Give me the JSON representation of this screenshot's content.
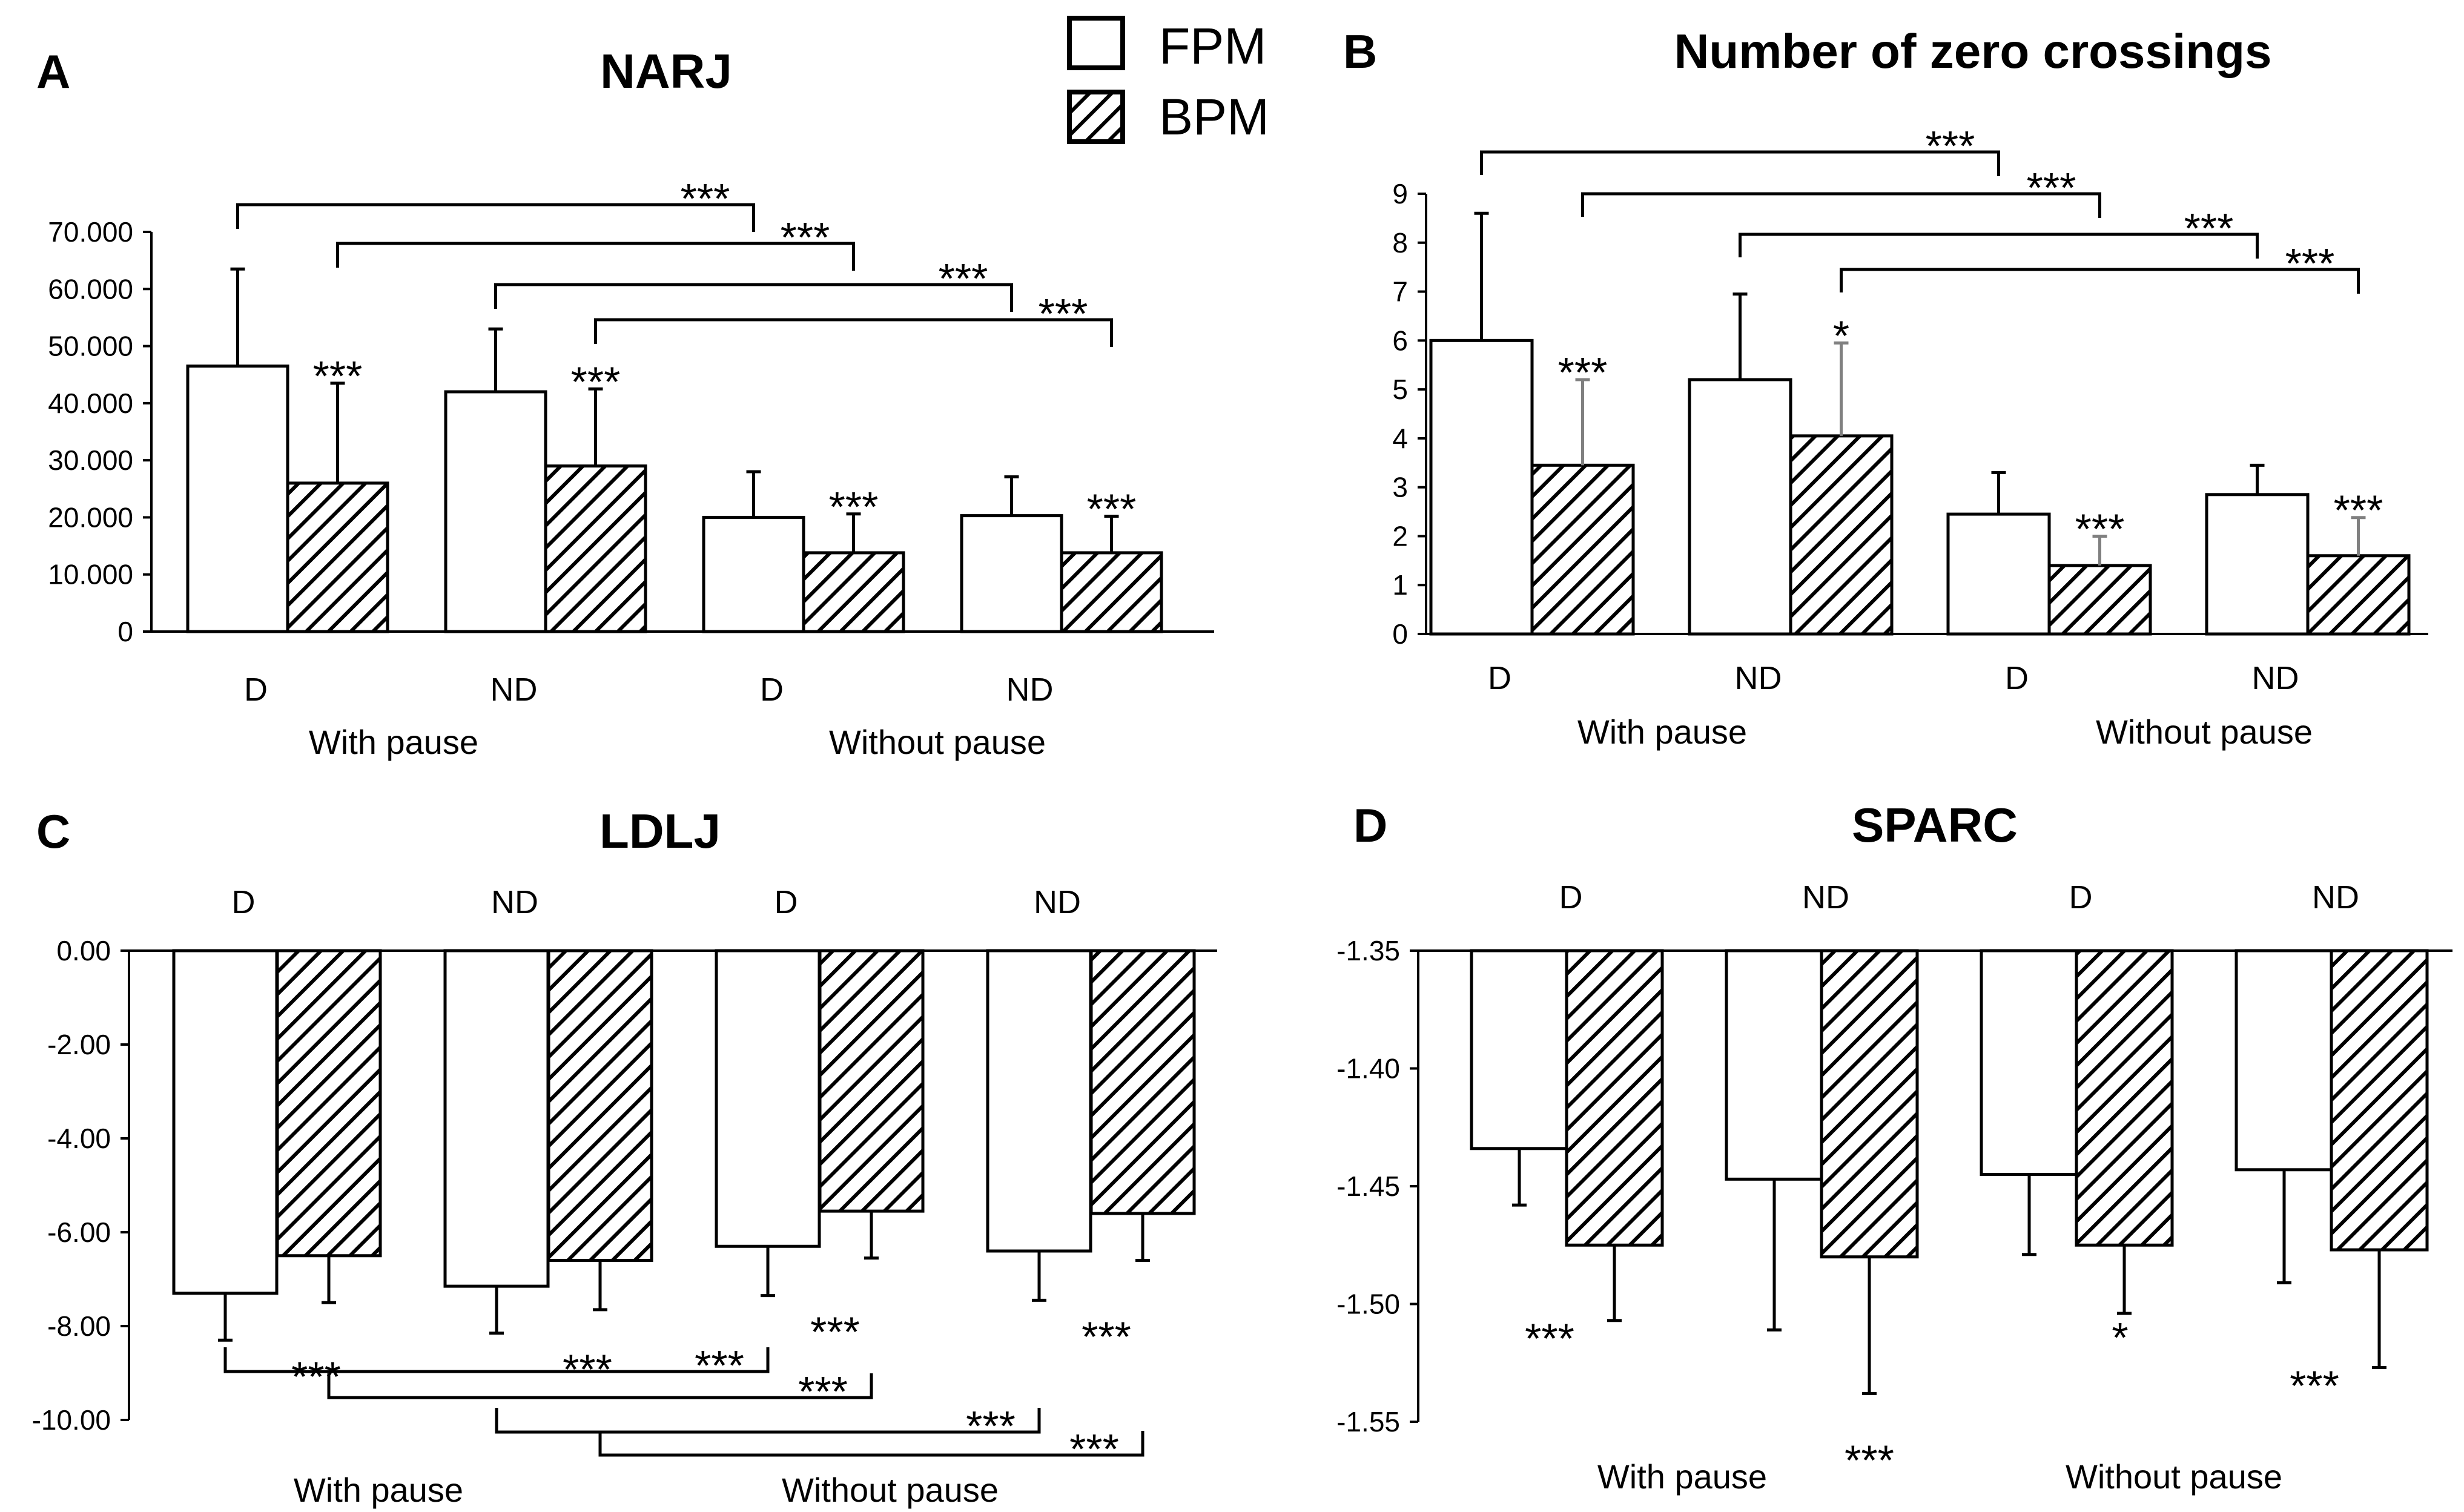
{
  "legend": {
    "fpm": "FPM",
    "bpm": "BPM"
  },
  "colors": {
    "fpm_fill": "#ffffff",
    "bpm_hatch": "#000000",
    "error_bar": "#000000",
    "error_bar_grey": "#808080"
  },
  "chart_data": [
    {
      "id": "A",
      "panel_label": "A",
      "type": "bar",
      "title": "NARJ",
      "groups": [
        "With pause",
        "Without pause"
      ],
      "categories": [
        "D",
        "ND",
        "D",
        "ND"
      ],
      "ylim": [
        0,
        70
      ],
      "orientation": "up",
      "yticks": [
        0,
        10,
        20,
        30,
        40,
        50,
        60,
        70
      ],
      "ytick_labels": [
        "0",
        "10.000",
        "20.000",
        "30.000",
        "40.000",
        "50.000",
        "60.000",
        "70.000"
      ],
      "series": [
        {
          "name": "FPM",
          "values": [
            46.5,
            42.0,
            20.0,
            20.3
          ],
          "errors": [
            17.0,
            11.0,
            8.0,
            6.8
          ]
        },
        {
          "name": "BPM",
          "values": [
            26.0,
            29.0,
            13.8,
            13.8
          ],
          "errors": [
            17.5,
            13.5,
            6.8,
            6.4
          ]
        }
      ],
      "bar_stars": [
        "***",
        "***",
        "***",
        "***"
      ],
      "brackets": [
        {
          "from": [
            0,
            "FPM"
          ],
          "to": [
            2,
            "FPM"
          ],
          "label": "***"
        },
        {
          "from": [
            0,
            "BPM"
          ],
          "to": [
            2,
            "BPM"
          ],
          "label": "***"
        },
        {
          "from": [
            1,
            "FPM"
          ],
          "to": [
            3,
            "FPM"
          ],
          "label": "***"
        },
        {
          "from": [
            1,
            "BPM"
          ],
          "to": [
            3,
            "BPM"
          ],
          "label": "***"
        }
      ]
    },
    {
      "id": "B",
      "panel_label": "B",
      "type": "bar",
      "title": "Number of zero crossings",
      "groups": [
        "With pause",
        "Without pause"
      ],
      "categories": [
        "D",
        "ND",
        "D",
        "ND"
      ],
      "ylim": [
        0,
        9
      ],
      "orientation": "up",
      "yticks": [
        0,
        1,
        2,
        3,
        4,
        5,
        6,
        7,
        8,
        9
      ],
      "ytick_labels": [
        "0",
        "1",
        "2",
        "3",
        "4",
        "5",
        "6",
        "7",
        "8",
        "9"
      ],
      "series": [
        {
          "name": "FPM",
          "values": [
            6.0,
            5.2,
            2.45,
            2.85
          ],
          "errors": [
            2.6,
            1.75,
            0.85,
            0.6
          ]
        },
        {
          "name": "BPM",
          "values": [
            3.45,
            4.05,
            1.4,
            1.6
          ],
          "errors": [
            1.75,
            1.9,
            0.6,
            0.78
          ]
        }
      ],
      "bar_stars": [
        "***",
        "*",
        "***",
        "***"
      ],
      "brackets": [
        {
          "from": [
            0,
            "FPM"
          ],
          "to": [
            2,
            "FPM"
          ],
          "label": "***"
        },
        {
          "from": [
            0,
            "BPM"
          ],
          "to": [
            2,
            "BPM"
          ],
          "label": "***"
        },
        {
          "from": [
            1,
            "FPM"
          ],
          "to": [
            3,
            "FPM"
          ],
          "label": "***"
        },
        {
          "from": [
            1,
            "BPM"
          ],
          "to": [
            3,
            "BPM"
          ],
          "label": "***"
        }
      ]
    },
    {
      "id": "C",
      "panel_label": "C",
      "type": "bar",
      "title": "LDLJ",
      "groups": [
        "With pause",
        "Without pause"
      ],
      "categories": [
        "D",
        "ND",
        "D",
        "ND"
      ],
      "ylim": [
        -10,
        0
      ],
      "orientation": "down",
      "yticks": [
        0,
        -2,
        -4,
        -6,
        -8,
        -10
      ],
      "ytick_labels": [
        "0.00",
        "-2.00",
        "-4.00",
        "-6.00",
        "-8.00",
        "-10.00"
      ],
      "series": [
        {
          "name": "FPM",
          "values": [
            -7.3,
            -7.15,
            -6.3,
            -6.4
          ],
          "errors": [
            1.0,
            1.0,
            1.05,
            1.05
          ]
        },
        {
          "name": "BPM",
          "values": [
            -6.5,
            -6.6,
            -5.55,
            -5.6
          ],
          "errors": [
            1.0,
            1.05,
            1.0,
            1.0
          ]
        }
      ],
      "bar_stars": [
        "***",
        "***",
        "***",
        "***"
      ],
      "brackets": [
        {
          "from": [
            0,
            "FPM"
          ],
          "to": [
            2,
            "FPM"
          ],
          "label": "***"
        },
        {
          "from": [
            0,
            "BPM"
          ],
          "to": [
            2,
            "BPM"
          ],
          "label": "***"
        },
        {
          "from": [
            1,
            "FPM"
          ],
          "to": [
            3,
            "FPM"
          ],
          "label": "***"
        },
        {
          "from": [
            1,
            "BPM"
          ],
          "to": [
            3,
            "BPM"
          ],
          "label": "***"
        }
      ]
    },
    {
      "id": "D",
      "panel_label": "D",
      "type": "bar",
      "title": "SPARC",
      "groups": [
        "With pause",
        "Without pause"
      ],
      "categories": [
        "D",
        "ND",
        "D",
        "ND"
      ],
      "ylim": [
        -1.55,
        -1.35
      ],
      "orientation": "down",
      "yticks": [
        -1.35,
        -1.4,
        -1.45,
        -1.5,
        -1.55
      ],
      "ytick_labels": [
        "-1.35",
        "-1.40",
        "-1.45",
        "-1.50",
        "-1.55"
      ],
      "series": [
        {
          "name": "FPM",
          "values": [
            -1.434,
            -1.447,
            -1.445,
            -1.443
          ],
          "errors": [
            0.024,
            0.064,
            0.034,
            0.048
          ]
        },
        {
          "name": "BPM",
          "values": [
            -1.475,
            -1.48,
            -1.475,
            -1.477
          ],
          "errors": [
            0.032,
            0.058,
            0.029,
            0.05
          ]
        }
      ],
      "bar_stars": [
        "***",
        "***",
        "*",
        "***"
      ],
      "brackets": []
    }
  ]
}
